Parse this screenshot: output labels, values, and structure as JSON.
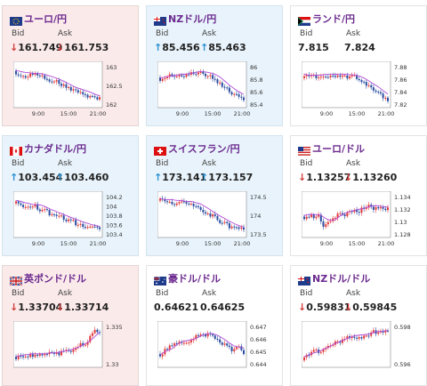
{
  "cards": [
    {
      "title": "ユーロ/円",
      "flag": "eu-flag-icon",
      "trend": "down",
      "bid_label": "Bid",
      "ask_label": "Ask",
      "bid": "161.749",
      "ask": "161.753",
      "bid_dir": "down",
      "ask_dir": "down",
      "ylabels": [
        "163",
        "162.5",
        "162"
      ],
      "xlabels": [
        "9:00",
        "15:00",
        "21:00"
      ]
    },
    {
      "title": "NZドル/円",
      "flag": "nz-flag-icon",
      "trend": "up",
      "bid_label": "Bid",
      "ask_label": "Ask",
      "bid": "85.456",
      "ask": "85.463",
      "bid_dir": "up",
      "ask_dir": "up",
      "ylabels": [
        "86",
        "85.8",
        "85.6",
        "85.4"
      ],
      "xlabels": [
        "9:00",
        "15:00",
        "21:00"
      ]
    },
    {
      "title": "ランド/円",
      "flag": "za-flag-icon",
      "trend": "flat",
      "bid_label": "Bid",
      "ask_label": "Ask",
      "bid": "7.815",
      "ask": "7.824",
      "bid_dir": "",
      "ask_dir": "",
      "ylabels": [
        "7.88",
        "7.86",
        "7.84",
        "7.82"
      ],
      "xlabels": [
        "9:00",
        "15:00",
        "21:00"
      ]
    },
    {
      "title": "カナダドル/円",
      "flag": "ca-flag-icon",
      "trend": "up",
      "bid_label": "Bid",
      "ask_label": "Ask",
      "bid": "103.454",
      "ask": "103.460",
      "bid_dir": "up",
      "ask_dir": "up",
      "ylabels": [
        "104.2",
        "104",
        "103.8",
        "103.6",
        "103.4"
      ],
      "xlabels": [
        "9:00",
        "15:00",
        "21:00"
      ]
    },
    {
      "title": "スイスフラン/円",
      "flag": "ch-flag-icon",
      "trend": "up",
      "bid_label": "Bid",
      "ask_label": "Ask",
      "bid": "173.141",
      "ask": "173.157",
      "bid_dir": "up",
      "ask_dir": "up",
      "ylabels": [
        "174.5",
        "174",
        "173.5"
      ],
      "xlabels": [
        "9:00",
        "15:00",
        "21:00"
      ]
    },
    {
      "title": "ユーロ/ドル",
      "flag": "us-flag-icon",
      "trend": "flat",
      "bid_label": "Bid",
      "ask_label": "Ask",
      "bid": "1.13257",
      "ask": "1.13260",
      "bid_dir": "down",
      "ask_dir": "down",
      "ylabels": [
        "1.134",
        "1.132",
        "1.13",
        "1.128"
      ],
      "xlabels": [
        "9:00",
        "15:00",
        "21:00"
      ]
    },
    {
      "title": "英ポンド/ドル",
      "flag": "uk-flag-icon",
      "trend": "down",
      "bid_label": "Bid",
      "ask_label": "Ask",
      "bid": "1.33704",
      "ask": "1.33714",
      "bid_dir": "down",
      "ask_dir": "down",
      "ylabels": [
        "1.335",
        "1.33"
      ],
      "xlabels": []
    },
    {
      "title": "豪ドル/ドル",
      "flag": "au-flag-icon",
      "trend": "flat",
      "bid_label": "Bid",
      "ask_label": "Ask",
      "bid": "0.64621",
      "ask": "0.64625",
      "bid_dir": "",
      "ask_dir": "",
      "ylabels": [
        "0.647",
        "0.646",
        "0.645",
        "0.644"
      ],
      "xlabels": []
    },
    {
      "title": "NZドル/ドル",
      "flag": "nz-flag-icon",
      "trend": "flat",
      "bid_label": "Bid",
      "ask_label": "Ask",
      "bid": "0.59831",
      "ask": "0.59845",
      "bid_dir": "down",
      "ask_dir": "down",
      "ylabels": [
        "0.598",
        "0.596"
      ],
      "xlabels": []
    }
  ],
  "colors": {
    "bull": "#e23b3b",
    "bear": "#2b4da0",
    "ma": "#b04ad6",
    "arrow_down": "#d23a3a",
    "arrow_up": "#2a8fcf"
  }
}
